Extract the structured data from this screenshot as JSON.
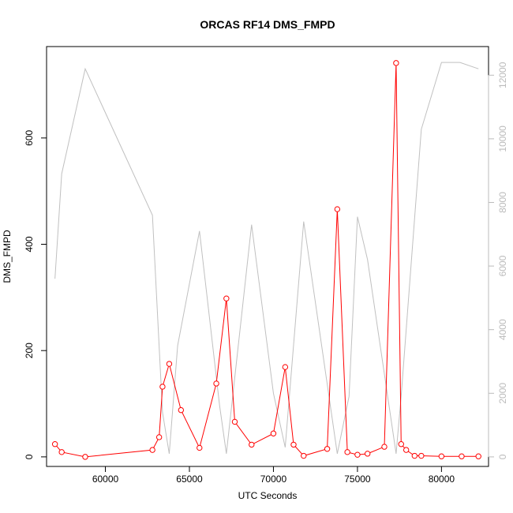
{
  "chart_data": {
    "type": "line",
    "title": "ORCAS RF14 DMS_FMPD",
    "xlabel": "UTC Seconds",
    "ylabel": "DMS_FMPD",
    "xlim": [
      56500,
      82800
    ],
    "ylim": [
      -18,
      772
    ],
    "xticks": [
      60000,
      65000,
      70000,
      75000,
      80000
    ],
    "yticks": [
      0,
      200,
      400,
      600
    ],
    "y2lim": [
      -300,
      12900
    ],
    "y2ticks": [
      0,
      2000,
      4000,
      6000,
      8000,
      10000,
      12000
    ],
    "grid": false,
    "legend": "none",
    "colors": {
      "primary": "#ff0000",
      "secondary": "#c0c0c0",
      "axis": "#000000",
      "secondary_ticks": "#bbbbbb"
    },
    "series": [
      {
        "axis": "left",
        "style": "line+markers",
        "x": [
          57000,
          57400,
          58800,
          62800,
          63200,
          63400,
          63800,
          64500,
          65600,
          66600,
          67200,
          67700,
          68700,
          70000,
          70700,
          71200,
          71800,
          73200,
          73800,
          74400,
          75000,
          75600,
          76600,
          77300,
          77600,
          77900,
          78400,
          78800,
          80000,
          81200,
          82200
        ],
        "y": [
          24,
          9,
          0,
          13,
          37,
          132,
          175,
          88,
          17,
          138,
          298,
          66,
          23,
          44,
          169,
          23,
          2,
          15,
          466,
          9,
          4,
          6,
          19,
          741,
          24,
          13,
          2,
          2,
          1,
          1,
          1
        ]
      },
      {
        "axis": "right",
        "style": "line",
        "x": [
          57000,
          57400,
          58800,
          62800,
          63400,
          63800,
          64300,
          65600,
          66800,
          67200,
          68700,
          70000,
          70700,
          71800,
          73800,
          74500,
          75000,
          75600,
          77300,
          77600,
          78800,
          80000,
          81100,
          82200
        ],
        "y": [
          5600,
          8900,
          12200,
          7600,
          1400,
          100,
          3500,
          7100,
          1600,
          100,
          7300,
          2000,
          300,
          7400,
          100,
          1900,
          7550,
          6200,
          100,
          1900,
          10300,
          12400,
          12400,
          12200
        ]
      }
    ]
  }
}
